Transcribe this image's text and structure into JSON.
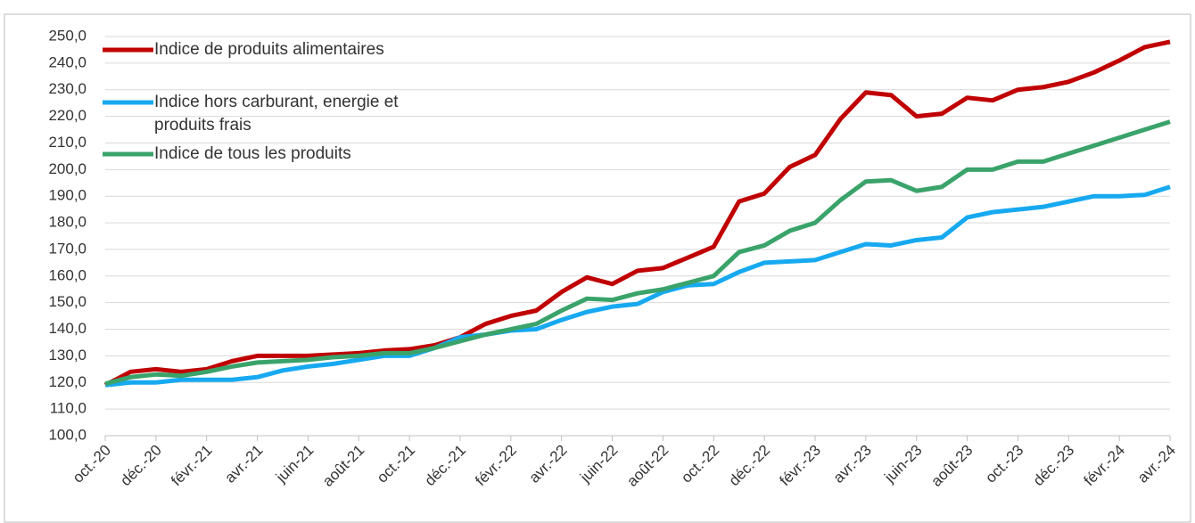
{
  "chart_data": {
    "type": "line",
    "categories": [
      "oct.-20",
      null,
      "déc.-20",
      null,
      "févr.-21",
      null,
      "avr.-21",
      null,
      "juin-21",
      null,
      "août-21",
      null,
      "oct.-21",
      null,
      "déc.-21",
      null,
      "févr.-22",
      null,
      "avr.-22",
      null,
      "juin-22",
      null,
      "août-22",
      null,
      "oct.-22",
      null,
      "déc.-22",
      null,
      "févr.-23",
      null,
      "avr.-23",
      null,
      "juin-23",
      null,
      "août-23",
      null,
      "oct.-23",
      null,
      "déc.-23",
      null,
      "févr.-24",
      null,
      "avr.-24"
    ],
    "series": [
      {
        "name": "Indice de produits alimentaires",
        "color": "#c00000",
        "values": [
          119,
          124,
          125,
          124,
          125,
          128,
          130,
          130,
          130,
          130.5,
          131,
          132,
          132.5,
          134,
          137,
          142,
          145,
          147,
          154,
          159.5,
          157,
          162,
          163,
          167,
          171,
          188,
          191,
          201,
          205.5,
          219,
          229,
          228,
          220,
          221,
          227,
          226,
          230,
          231,
          233,
          236.5,
          241,
          246,
          248
        ]
      },
      {
        "name": "Indice hors carburant, energie et produits frais",
        "color": "#17a9f0",
        "values": [
          119,
          120,
          120,
          121,
          121,
          121,
          122,
          124.5,
          126,
          127,
          128.5,
          130,
          130,
          133,
          137,
          138,
          139.5,
          140,
          143.5,
          146.5,
          148.5,
          149.5,
          154,
          156.5,
          157,
          161.5,
          165,
          165.5,
          166,
          169,
          172,
          171.5,
          173.5,
          174.5,
          182,
          184,
          185,
          186,
          188,
          190,
          190,
          190.5,
          193.5
        ]
      },
      {
        "name": "Indice de tous les produits",
        "color": "#3aa36a",
        "values": [
          119.5,
          122,
          123,
          122.5,
          124,
          126,
          127.5,
          128,
          128.5,
          129.5,
          130,
          131,
          131,
          133,
          135.5,
          138,
          140,
          142,
          147,
          151.5,
          151,
          153.5,
          155,
          157.5,
          160,
          169,
          171.5,
          177,
          180,
          188.5,
          195.5,
          196,
          192,
          193.5,
          200,
          200,
          203,
          203,
          206,
          209,
          212,
          215,
          218
        ]
      }
    ],
    "ylim": [
      100,
      250
    ],
    "yticks": [
      {
        "value": 100,
        "label": "100,0"
      },
      {
        "value": 110,
        "label": "110,0"
      },
      {
        "value": 120,
        "label": "120,0"
      },
      {
        "value": 130,
        "label": "130,0"
      },
      {
        "value": 140,
        "label": "140,0"
      },
      {
        "value": 150,
        "label": "150,0"
      },
      {
        "value": 160,
        "label": "160,0"
      },
      {
        "value": 170,
        "label": "170,0"
      },
      {
        "value": 180,
        "label": "180,0"
      },
      {
        "value": 190,
        "label": "190,0"
      },
      {
        "value": 200,
        "label": "200,0"
      },
      {
        "value": 210,
        "label": "210,0"
      },
      {
        "value": 220,
        "label": "220,0"
      },
      {
        "value": 230,
        "label": "230,0"
      },
      {
        "value": 240,
        "label": "240,0"
      },
      {
        "value": 250,
        "label": "250,0"
      }
    ],
    "grid": true,
    "legend": "upper left"
  }
}
